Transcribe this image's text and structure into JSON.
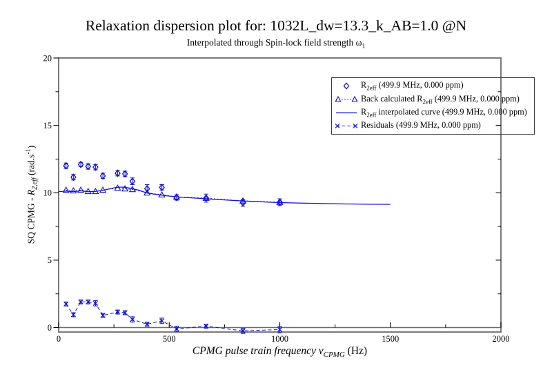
{
  "colors": {
    "series": "#0f10d0",
    "frame": "#6b6b6b",
    "ticks": "#000000",
    "text": "#000000",
    "legend_border": "#3c3c3c",
    "background": "#ffffff"
  },
  "labels": {
    "subtitle": {
      "pre": "Interpolated through Spin-lock field strength ",
      "sym": "ω",
      "sub": "1"
    },
    "x_axis": {
      "pre": "CPMG pulse train frequency ",
      "sym": "ν",
      "sub": "CPMG",
      "post": " (Hz)"
    },
    "y_axis": {
      "pre": "SQ CPMG - ",
      "sym": "R",
      "sub": "2,eff",
      "mid": " (rad.s",
      "sup": "-1",
      "post": ")"
    }
  },
  "legend": {
    "entries": [
      {
        "marker": "open-diamond",
        "pre": "R",
        "sub": "2eff",
        "post": " (499.9 MHz, 0.000 ppm)"
      },
      {
        "marker": "open-triangle-dotted-line",
        "pre": "Back calculated R",
        "sub": "2eff",
        "post": " (499.9 MHz, 0.000 ppm)"
      },
      {
        "marker": "solid-line",
        "pre": "R",
        "sub": "2eff",
        "post": " interpolated curve (499.9 MHz, 0.000 ppm)"
      },
      {
        "marker": "x-dashed-line",
        "pre": "Residuals (499.9 MHz, 0.000 ppm)",
        "sub": "",
        "post": ""
      }
    ]
  },
  "chart_data": {
    "type": "scatter",
    "title": "Relaxation dispersion plot for: 1032L_dw=13.3_k_AB=1.0 @N",
    "subtitle": "Interpolated through Spin-lock field strength ω1",
    "xlabel": "CPMG pulse train frequency νCPMG (Hz)",
    "ylabel": "SQ CPMG - R2,eff (rad.s-1)",
    "xlim": [
      0,
      2000
    ],
    "ylim": [
      -0.33,
      20
    ],
    "xticks": [
      0,
      500,
      1000,
      1500,
      2000
    ],
    "xticks_minor": [
      250,
      750,
      1250,
      1750
    ],
    "yticks": [
      0,
      5,
      10,
      15,
      20
    ],
    "yticks_minor": [
      2.5,
      7.5,
      12.5,
      17.5
    ],
    "grid": false,
    "legend_position": "upper right",
    "x": [
      33.33,
      66.67,
      100,
      133.33,
      166.67,
      200,
      266.67,
      300,
      333.33,
      400,
      466.67,
      533.33,
      666.67,
      833.33,
      1000
    ],
    "series": [
      {
        "name": "R2eff (499.9 MHz, 0.000 ppm)",
        "type": "scatter",
        "marker": "open-diamond",
        "values": [
          12.0,
          11.15,
          12.1,
          11.95,
          11.9,
          11.25,
          11.45,
          11.4,
          10.85,
          10.3,
          10.4,
          9.65,
          9.6,
          9.25,
          9.3
        ],
        "errors": [
          0.2,
          0.2,
          0.15,
          0.2,
          0.2,
          0.2,
          0.2,
          0.2,
          0.25,
          0.3,
          0.2,
          0.2,
          0.3,
          0.25,
          0.25
        ]
      },
      {
        "name": "Back calculated R2eff (499.9 MHz, 0.000 ppm)",
        "type": "line+scatter",
        "linestyle": "dotted",
        "marker": "open-triangle-up",
        "values": [
          10.2,
          10.15,
          10.2,
          10.1,
          10.1,
          10.2,
          10.35,
          10.3,
          10.25,
          10.0,
          9.85,
          9.7,
          9.6,
          9.4,
          9.3
        ]
      },
      {
        "name": "R2eff interpolated curve (499.9 MHz, 0.000 ppm)",
        "type": "line",
        "linestyle": "solid",
        "curve_x": [
          0,
          33,
          67,
          100,
          133,
          167,
          200,
          233,
          260,
          290,
          320,
          360,
          400,
          440,
          480,
          520,
          560,
          600,
          650,
          700,
          750,
          800,
          850,
          900,
          950,
          1000,
          1100,
          1200,
          1300,
          1400,
          1500
        ],
        "curve_y": [
          10.08,
          10.12,
          10.08,
          10.15,
          10.08,
          10.1,
          10.18,
          10.3,
          10.4,
          10.42,
          10.35,
          10.2,
          9.98,
          9.88,
          9.79,
          9.72,
          9.66,
          9.62,
          9.57,
          9.52,
          9.47,
          9.42,
          9.38,
          9.34,
          9.3,
          9.27,
          9.23,
          9.2,
          9.17,
          9.15,
          9.14
        ]
      },
      {
        "name": "Residuals (499.9 MHz, 0.000 ppm)",
        "type": "line+scatter",
        "linestyle": "dashed",
        "marker": "x",
        "values": [
          1.75,
          0.95,
          1.9,
          1.9,
          1.8,
          0.9,
          1.15,
          1.1,
          0.6,
          0.25,
          0.5,
          -0.1,
          0.1,
          -0.25,
          -0.15
        ],
        "errors": [
          0.15,
          0.15,
          0.15,
          0.15,
          0.2,
          0.15,
          0.15,
          0.15,
          0.2,
          0.15,
          0.2,
          0.2,
          0.15,
          0.2,
          0.25
        ]
      }
    ]
  }
}
